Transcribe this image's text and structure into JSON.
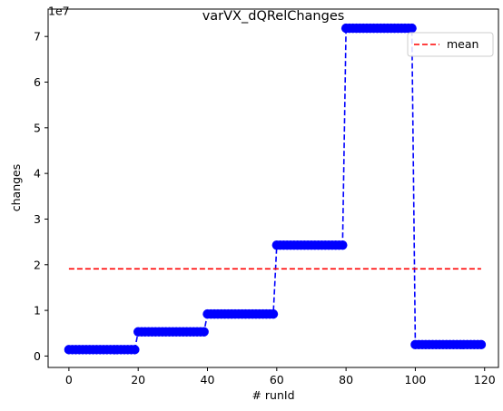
{
  "chart_data": {
    "type": "line",
    "title": "varVX_dQRelChanges",
    "xlabel": "# runId",
    "ylabel": "changes",
    "y_offset_text": "1e7",
    "xlim": [
      -6,
      124
    ],
    "ylim": [
      -0.25,
      7.6
    ],
    "x_ticks": [
      0,
      20,
      40,
      60,
      80,
      100,
      120
    ],
    "x_tick_labels": [
      "0",
      "20",
      "40",
      "60",
      "80",
      "100",
      "120"
    ],
    "y_ticks": [
      0,
      1,
      2,
      3,
      4,
      5,
      6,
      7
    ],
    "y_tick_labels": [
      "0",
      "1",
      "2",
      "3",
      "4",
      "5",
      "6",
      "7"
    ],
    "grid": false,
    "legend": {
      "position": "top-right",
      "entries": [
        "mean"
      ]
    },
    "colors": {
      "series": "#0000ff",
      "mean": "#ff0000"
    },
    "series": [
      {
        "style": "dashed line with circle markers",
        "segments": [
          {
            "x_start": 0,
            "x_end": 19,
            "y": 0.14
          },
          {
            "x_start": 20,
            "x_end": 39,
            "y": 0.53
          },
          {
            "x_start": 40,
            "x_end": 59,
            "y": 0.92
          },
          {
            "x_start": 60,
            "x_end": 79,
            "y": 2.43
          },
          {
            "x_start": 80,
            "x_end": 99,
            "y": 7.18
          },
          {
            "x_start": 100,
            "x_end": 119,
            "y": 0.25
          }
        ]
      },
      {
        "name": "mean",
        "style": "dashed line",
        "x": [
          0,
          119
        ],
        "y": [
          1.91,
          1.91
        ]
      }
    ]
  }
}
